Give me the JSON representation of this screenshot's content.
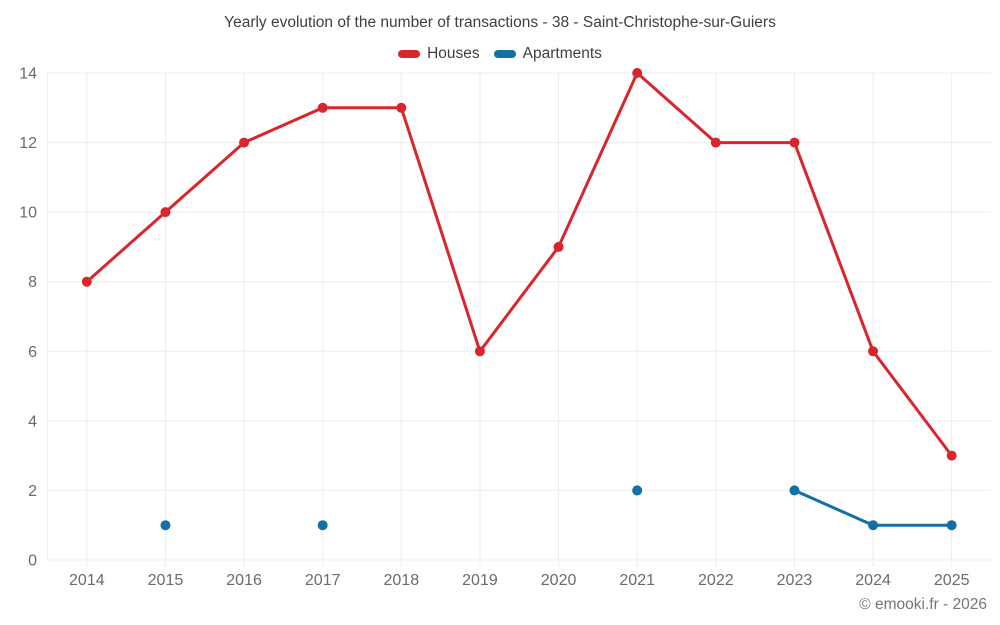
{
  "title": "Yearly evolution of the number of transactions - 38 - Saint-Christophe-sur-Guiers",
  "footer_credit": "© emooki.fr - 2026",
  "colors": {
    "houses": "#d8262c",
    "apartments": "#1270a7",
    "grid": "#ececec",
    "tick_text": "#6b6b6b",
    "title_text": "#3f3f3f",
    "footer_text": "#757575",
    "background": "#ffffff"
  },
  "chart_data": {
    "type": "line",
    "title": "Yearly evolution of the number of transactions - 38 - Saint-Christophe-sur-Guiers",
    "categories": [
      "2014",
      "2015",
      "2016",
      "2017",
      "2018",
      "2019",
      "2020",
      "2021",
      "2022",
      "2023",
      "2024",
      "2025"
    ],
    "series": [
      {
        "name": "Houses",
        "color": "#d8262c",
        "values": [
          8,
          10,
          12,
          13,
          13,
          6,
          9,
          14,
          12,
          12,
          6,
          3
        ]
      },
      {
        "name": "Apartments",
        "color": "#1270a7",
        "values": [
          null,
          1,
          null,
          1,
          null,
          null,
          null,
          2,
          null,
          2,
          1,
          1
        ]
      }
    ],
    "xlabel": "",
    "ylabel": "",
    "ylim": [
      0,
      14
    ],
    "yticks": [
      0,
      2,
      4,
      6,
      8,
      10,
      12,
      14
    ],
    "grid": true,
    "legend_position": "top",
    "marker": "circle"
  }
}
